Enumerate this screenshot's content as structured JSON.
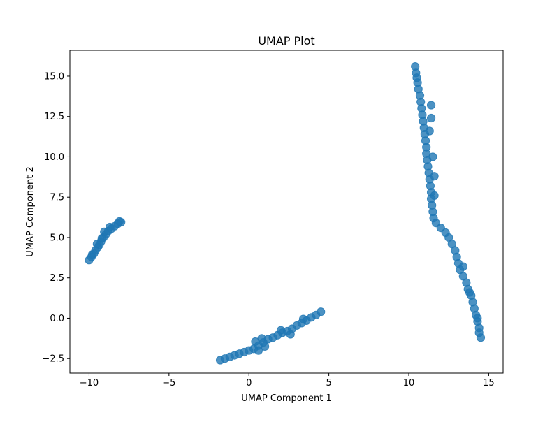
{
  "chart_data": {
    "type": "scatter",
    "title": "UMAP Plot",
    "xlabel": "UMAP Component 1",
    "ylabel": "UMAP Component 2",
    "xlim": [
      -11.2,
      15.9
    ],
    "ylim": [
      -3.4,
      16.6
    ],
    "xticks": [
      -10,
      -5,
      0,
      5,
      10,
      15
    ],
    "yticks": [
      -2.5,
      0.0,
      2.5,
      5.0,
      7.5,
      10.0,
      12.5,
      15.0
    ],
    "xtick_labels": [
      "−10",
      "−5",
      "0",
      "5",
      "10",
      "15"
    ],
    "ytick_labels": [
      "−2.5",
      "0.0",
      "2.5",
      "5.0",
      "7.5",
      "10.0",
      "12.5",
      "15.0"
    ],
    "grid": false,
    "marker_color": "#1f77b4",
    "marker_opacity": 0.8,
    "series": [
      {
        "points": [
          [
            -10.0,
            3.6
          ],
          [
            -9.85,
            3.8
          ],
          [
            -9.7,
            4.0
          ],
          [
            -9.6,
            4.2
          ],
          [
            -9.45,
            4.4
          ],
          [
            -9.35,
            4.55
          ],
          [
            -9.25,
            4.75
          ],
          [
            -9.1,
            5.0
          ],
          [
            -8.95,
            5.2
          ],
          [
            -8.8,
            5.4
          ],
          [
            -8.6,
            5.55
          ],
          [
            -8.4,
            5.7
          ],
          [
            -8.2,
            5.85
          ],
          [
            -8.0,
            5.95
          ],
          [
            -8.1,
            6.0
          ],
          [
            -9.2,
            4.95
          ],
          [
            -9.05,
            5.35
          ],
          [
            -8.7,
            5.65
          ],
          [
            -9.5,
            4.6
          ],
          [
            -9.8,
            3.95
          ]
        ]
      },
      {
        "points": [
          [
            -1.8,
            -2.6
          ],
          [
            -1.5,
            -2.5
          ],
          [
            -1.2,
            -2.4
          ],
          [
            -0.9,
            -2.3
          ],
          [
            -0.6,
            -2.2
          ],
          [
            -0.3,
            -2.1
          ],
          [
            0.0,
            -2.0
          ],
          [
            0.3,
            -1.9
          ],
          [
            0.6,
            -1.7
          ],
          [
            0.9,
            -1.5
          ],
          [
            1.2,
            -1.3
          ],
          [
            1.5,
            -1.2
          ],
          [
            1.8,
            -1.05
          ],
          [
            2.1,
            -0.9
          ],
          [
            2.4,
            -0.8
          ],
          [
            2.7,
            -0.65
          ],
          [
            3.0,
            -0.45
          ],
          [
            3.3,
            -0.3
          ],
          [
            3.6,
            -0.15
          ],
          [
            3.9,
            0.05
          ],
          [
            4.2,
            0.2
          ],
          [
            4.5,
            0.4
          ],
          [
            0.4,
            -1.45
          ],
          [
            0.8,
            -1.25
          ],
          [
            2.0,
            -0.75
          ],
          [
            0.6,
            -2.0
          ],
          [
            1.0,
            -1.75
          ],
          [
            2.6,
            -1.0
          ],
          [
            3.4,
            -0.05
          ]
        ]
      },
      {
        "points": [
          [
            10.4,
            15.6
          ],
          [
            10.45,
            15.2
          ],
          [
            10.5,
            14.9
          ],
          [
            10.55,
            14.6
          ],
          [
            10.6,
            14.2
          ],
          [
            10.7,
            13.8
          ],
          [
            10.75,
            13.4
          ],
          [
            10.8,
            13.0
          ],
          [
            10.85,
            12.6
          ],
          [
            10.9,
            12.2
          ],
          [
            10.95,
            11.8
          ],
          [
            11.0,
            11.4
          ],
          [
            11.05,
            11.0
          ],
          [
            11.1,
            10.6
          ],
          [
            11.1,
            10.2
          ],
          [
            11.15,
            9.8
          ],
          [
            11.2,
            9.4
          ],
          [
            11.25,
            9.0
          ],
          [
            11.3,
            8.6
          ],
          [
            11.35,
            8.2
          ],
          [
            11.4,
            7.8
          ],
          [
            11.4,
            7.4
          ],
          [
            11.45,
            7.0
          ],
          [
            11.5,
            6.6
          ],
          [
            11.55,
            6.2
          ],
          [
            11.7,
            5.9
          ],
          [
            12.0,
            5.6
          ],
          [
            12.3,
            5.3
          ],
          [
            12.5,
            5.0
          ],
          [
            12.7,
            4.6
          ],
          [
            12.9,
            4.2
          ],
          [
            13.0,
            3.8
          ],
          [
            13.1,
            3.4
          ],
          [
            13.2,
            3.0
          ],
          [
            13.4,
            2.6
          ],
          [
            13.6,
            2.2
          ],
          [
            13.7,
            1.8
          ],
          [
            13.9,
            1.4
          ],
          [
            14.0,
            1.0
          ],
          [
            14.1,
            0.6
          ],
          [
            14.2,
            0.2
          ],
          [
            14.3,
            -0.2
          ],
          [
            14.4,
            -0.6
          ],
          [
            14.5,
            -1.2
          ],
          [
            14.4,
            -0.9
          ],
          [
            11.4,
            13.2
          ],
          [
            11.4,
            12.4
          ],
          [
            11.3,
            11.6
          ],
          [
            11.5,
            10.0
          ],
          [
            11.6,
            8.8
          ],
          [
            11.6,
            7.6
          ],
          [
            13.4,
            3.2
          ],
          [
            13.8,
            1.6
          ],
          [
            14.3,
            0.0
          ]
        ]
      }
    ]
  }
}
